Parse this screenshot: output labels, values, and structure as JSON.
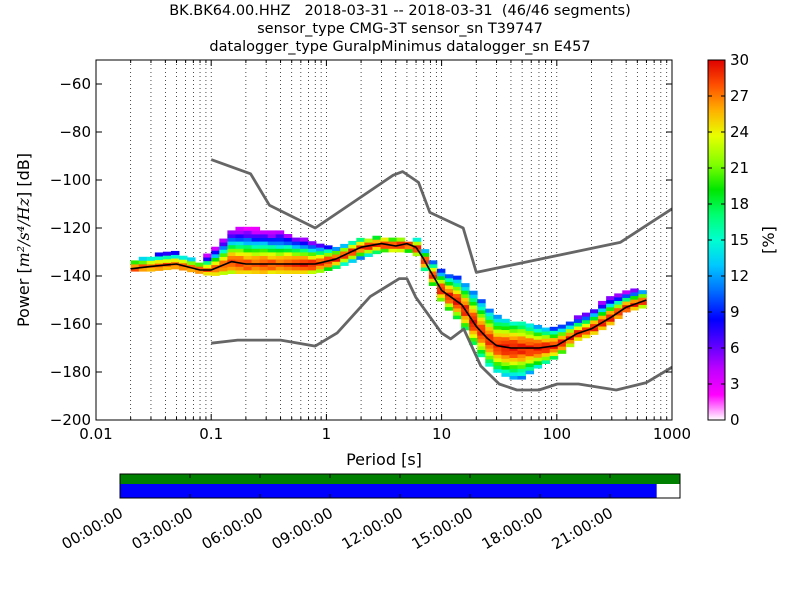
{
  "title_lines": [
    "BK.BK64.00.HHZ   2018-03-31 -- 2018-03-31  (46/46 segments)",
    "sensor_type CMG-3T sensor_sn T39747",
    "datalogger_type GuralpMinimus datalogger_sn E457"
  ],
  "chart_data": {
    "type": "heatmap",
    "xlabel": "Period [s]",
    "ylabel_prefix": "Power [",
    "ylabel_units": "m²/s⁴/Hz",
    "ylabel_suffix": "] [dB]",
    "x_scale": "log",
    "xlim": [
      0.01,
      1000
    ],
    "ylim": [
      -200,
      -50
    ],
    "x_ticks": [
      0.01,
      0.1,
      1,
      10,
      100,
      1000
    ],
    "x_tick_labels": [
      "0.01",
      "0.1",
      "1",
      "10",
      "100",
      "1000"
    ],
    "y_ticks": [
      -200,
      -180,
      -160,
      -140,
      -120,
      -100,
      -80,
      -60
    ],
    "y_tick_labels": [
      "−200",
      "−180",
      "−160",
      "−140",
      "−120",
      "−100",
      "−80",
      "−60"
    ],
    "grid": "dotted",
    "colorbar": {
      "label": "[%]",
      "range": [
        0,
        30
      ],
      "ticks": [
        "0",
        "3",
        "6",
        "9",
        "12",
        "15",
        "18",
        "21",
        "24",
        "27",
        "30"
      ]
    },
    "nhnm": {
      "period": [
        0.1,
        0.22,
        0.32,
        0.8,
        3.8,
        4.6,
        6.3,
        7.9,
        15.4,
        20,
        354.8,
        1000
      ],
      "db": [
        -91.5,
        -97.4,
        -110.5,
        -120,
        -98,
        -96.5,
        -101,
        -113.5,
        -120,
        -138.5,
        -126,
        -112
      ]
    },
    "nlnm": {
      "period": [
        0.1,
        0.17,
        0.4,
        0.8,
        1.24,
        2.4,
        4.3,
        5,
        6,
        10,
        12,
        15.6,
        21.9,
        31.6,
        45,
        70,
        101,
        154,
        328,
        600,
        1000
      ],
      "db": [
        -168,
        -166.7,
        -166.7,
        -169.2,
        -163.7,
        -148.6,
        -141.1,
        -141.1,
        -149,
        -163.8,
        -166.2,
        -162.1,
        -177.5,
        -185,
        -187.5,
        -187.5,
        -185,
        -185,
        -187.5,
        -184.4,
        -178
      ]
    },
    "mode_curve": {
      "period": [
        0.02,
        0.03,
        0.05,
        0.08,
        0.1,
        0.15,
        0.2,
        0.4,
        0.8,
        1.2,
        2,
        3,
        4,
        5,
        6,
        7,
        8,
        10,
        15,
        20,
        25,
        30,
        40,
        50,
        70,
        100,
        150,
        200,
        300,
        400,
        600
      ],
      "db": [
        -137,
        -136,
        -135,
        -137.5,
        -137.5,
        -134,
        -135,
        -135,
        -135,
        -133,
        -128,
        -126.5,
        -127.5,
        -126.5,
        -128,
        -133,
        -138,
        -146,
        -152,
        -161,
        -166,
        -169,
        -170,
        -170,
        -170,
        -169,
        -164,
        -162,
        -157,
        -153,
        -150
      ]
    },
    "segment_range": {
      "period": [
        0.02,
        0.03,
        0.05,
        0.08,
        0.1,
        0.15,
        0.2,
        0.4,
        0.8,
        1.2,
        2,
        3,
        4,
        5,
        6,
        7,
        8,
        10,
        15,
        20,
        25,
        30,
        40,
        50,
        70,
        100,
        150,
        200,
        300,
        400,
        600
      ],
      "db_upper": [
        -135,
        -132,
        -131,
        -135,
        -130,
        -122,
        -120,
        -122,
        -127,
        -129,
        -125,
        -124,
        -125,
        -126,
        -125,
        -129,
        -133,
        -138,
        -142,
        -148,
        -154,
        -157,
        -160,
        -160,
        -162,
        -162,
        -158,
        -155,
        -149,
        -147,
        -146
      ],
      "db_lower": [
        -138,
        -138,
        -137,
        -139,
        -140,
        -139,
        -139,
        -139,
        -139,
        -137,
        -133,
        -130,
        -130,
        -130,
        -131,
        -137,
        -142,
        -151,
        -160,
        -171,
        -177,
        -180,
        -183,
        -183,
        -178,
        -174,
        -167,
        -165,
        -160,
        -155,
        -153
      ]
    }
  },
  "timeline": {
    "tick_labels": [
      "00:00:00",
      "03:00:00",
      "06:00:00",
      "09:00:00",
      "12:00:00",
      "15:00:00",
      "18:00:00",
      "21:00:00"
    ],
    "tick_hours": [
      0,
      3,
      6,
      9,
      12,
      15,
      18,
      21
    ],
    "total_hours": 24,
    "data_coverage_end_hour": 23,
    "data_bar_color": "#008000",
    "segment_bar_color": "#0000ff"
  }
}
